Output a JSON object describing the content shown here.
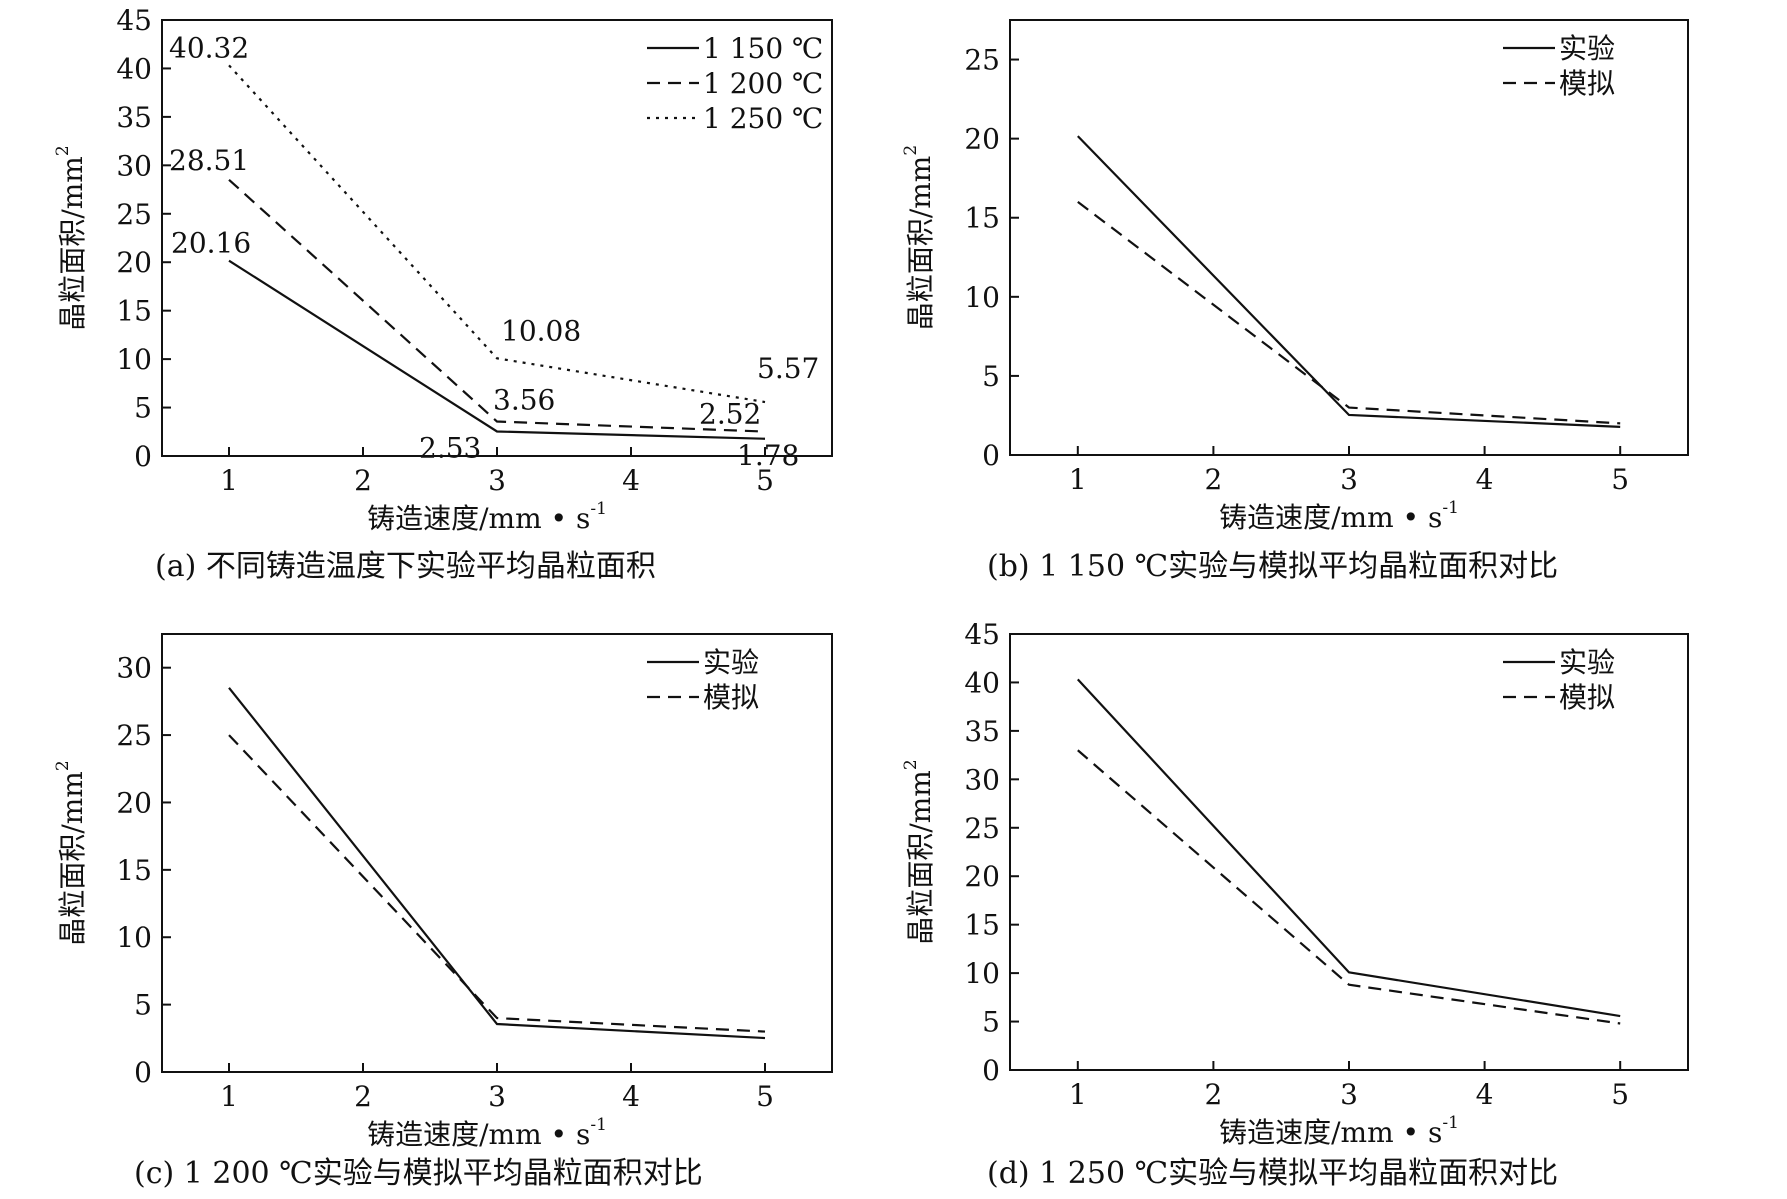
{
  "chart_data": [
    {
      "id": "a",
      "type": "line",
      "caption": "(a) 不同铸造温度下实验平均晶粒面积",
      "xlabel": "铸造速度/mm • s",
      "xlabel_sup": "-1",
      "ylabel": "晶粒面积/mm",
      "ylabel_sup": "2",
      "xlim": [
        0.5,
        5.5
      ],
      "ylim": [
        0,
        45
      ],
      "xticks": [
        1,
        2,
        3,
        4,
        5
      ],
      "yticks": [
        0,
        5,
        10,
        15,
        20,
        25,
        30,
        35,
        40,
        45
      ],
      "legend_position": "top-right",
      "series": [
        {
          "name": "1 150 ℃",
          "style": "solid",
          "x": [
            1,
            3,
            5
          ],
          "y": [
            20.16,
            2.53,
            1.78
          ]
        },
        {
          "name": "1 200 ℃",
          "style": "dashed",
          "x": [
            1,
            3,
            5
          ],
          "y": [
            28.51,
            3.56,
            2.52
          ]
        },
        {
          "name": "1 250 ℃",
          "style": "dotted",
          "x": [
            1,
            3,
            5
          ],
          "y": [
            40.32,
            10.08,
            5.57
          ]
        }
      ],
      "data_labels": [
        {
          "text": "40.32",
          "x": 1,
          "y": 40.32
        },
        {
          "text": "28.51",
          "x": 1,
          "y": 28.51
        },
        {
          "text": "20.16",
          "x": 1,
          "y": 20.16
        },
        {
          "text": "10.08",
          "x": 3,
          "y": 10.08
        },
        {
          "text": "3.56",
          "x": 3,
          "y": 3.56
        },
        {
          "text": "2.53",
          "x": 3,
          "y": 2.53
        },
        {
          "text": "5.57",
          "x": 5,
          "y": 5.57
        },
        {
          "text": "2.52",
          "x": 5,
          "y": 2.52
        },
        {
          "text": "1.78",
          "x": 5,
          "y": 1.78
        }
      ]
    },
    {
      "id": "b",
      "type": "line",
      "caption": "(b) 1 150 ℃实验与模拟平均晶粒面积对比",
      "xlabel": "铸造速度/mm • s",
      "xlabel_sup": "-1",
      "ylabel": "晶粒面积/mm",
      "ylabel_sup": "2",
      "xlim": [
        0.5,
        5.5
      ],
      "ylim": [
        0,
        27.5
      ],
      "xticks": [
        1,
        2,
        3,
        4,
        5
      ],
      "yticks": [
        0,
        5,
        10,
        15,
        20,
        25
      ],
      "legend_position": "top-right",
      "series": [
        {
          "name": "实验",
          "style": "solid",
          "x": [
            1,
            3,
            5
          ],
          "y": [
            20.16,
            2.53,
            1.78
          ]
        },
        {
          "name": "模拟",
          "style": "dashed",
          "x": [
            1,
            3,
            5
          ],
          "y": [
            16.0,
            3.0,
            2.0
          ]
        }
      ],
      "data_labels": []
    },
    {
      "id": "c",
      "type": "line",
      "caption": "(c) 1 200 ℃实验与模拟平均晶粒面积对比",
      "xlabel": "铸造速度/mm • s",
      "xlabel_sup": "-1",
      "ylabel": "晶粒面积/mm",
      "ylabel_sup": "2",
      "xlim": [
        0.5,
        5.5
      ],
      "ylim": [
        0,
        32.5
      ],
      "xticks": [
        1,
        2,
        3,
        4,
        5
      ],
      "yticks": [
        0,
        5,
        10,
        15,
        20,
        25,
        30
      ],
      "legend_position": "top-right",
      "series": [
        {
          "name": "实验",
          "style": "solid",
          "x": [
            1,
            3,
            5
          ],
          "y": [
            28.51,
            3.56,
            2.52
          ]
        },
        {
          "name": "模拟",
          "style": "dashed",
          "x": [
            1,
            3,
            5
          ],
          "y": [
            25.0,
            4.0,
            3.0
          ]
        }
      ],
      "data_labels": []
    },
    {
      "id": "d",
      "type": "line",
      "caption": "(d) 1 250 ℃实验与模拟平均晶粒面积对比",
      "xlabel": "铸造速度/mm • s",
      "xlabel_sup": "-1",
      "ylabel": "晶粒面积/mm",
      "ylabel_sup": "2",
      "xlim": [
        0.5,
        5.5
      ],
      "ylim": [
        0,
        45
      ],
      "xticks": [
        1,
        2,
        3,
        4,
        5
      ],
      "yticks": [
        0,
        5,
        10,
        15,
        20,
        25,
        30,
        35,
        40,
        45
      ],
      "legend_position": "top-right",
      "series": [
        {
          "name": "实验",
          "style": "solid",
          "x": [
            1,
            3,
            5
          ],
          "y": [
            40.32,
            10.08,
            5.57
          ]
        },
        {
          "name": "模拟",
          "style": "dashed",
          "x": [
            1,
            3,
            5
          ],
          "y": [
            33.0,
            8.8,
            4.8
          ]
        }
      ],
      "data_labels": []
    }
  ]
}
